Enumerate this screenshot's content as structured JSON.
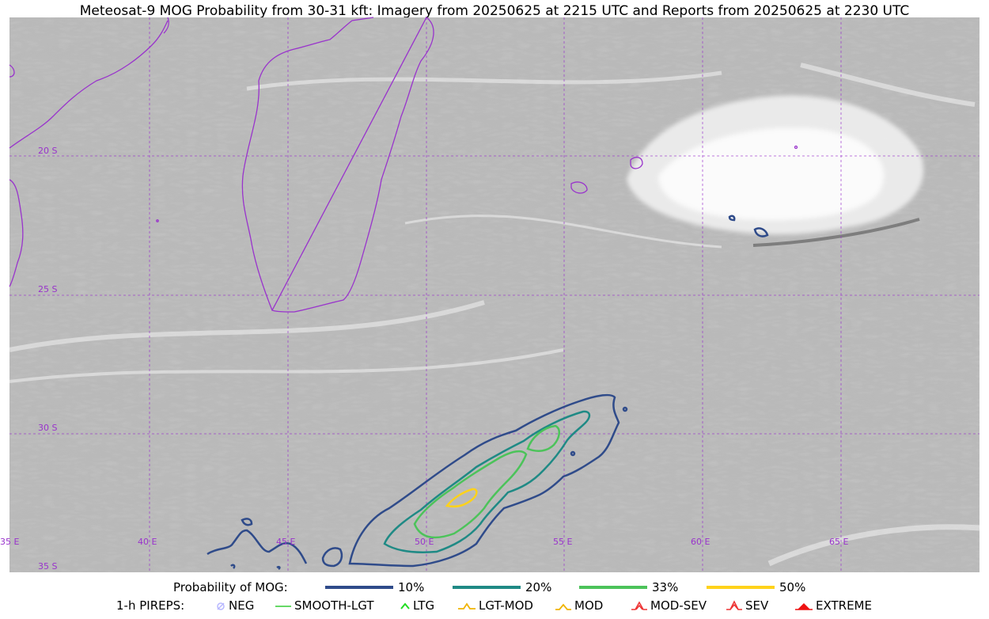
{
  "title": "Meteosat-9 MOG Probability from 30-31 kft: Imagery from 20250625 at 2215 UTC and Reports from 20250625 at 2230 UTC",
  "map": {
    "lat_labels": [
      "20 S",
      "25 S",
      "30 S",
      "35 S"
    ],
    "lon_labels": [
      "35 E",
      "40 E",
      "45 E",
      "50 E",
      "55 E",
      "60 E",
      "65 E"
    ],
    "grid_color": "#9933cc",
    "coast_color": "#9933cc",
    "contour_colors": {
      "10%": "#2f4b8a",
      "20%": "#1f8a85",
      "33%": "#4cc35a",
      "50%": "#ffd21a"
    }
  },
  "legend": {
    "probability": {
      "title": "Probability of MOG:",
      "items": [
        {
          "label": "10%",
          "color": "#2f4b8a"
        },
        {
          "label": "20%",
          "color": "#1f8a85"
        },
        {
          "label": "33%",
          "color": "#4cc35a"
        },
        {
          "label": "50%",
          "color": "#ffd21a"
        }
      ]
    },
    "pireps": {
      "title": "1-h PIREPS:",
      "items": [
        {
          "label": "NEG",
          "icon": "neg-icon",
          "color": "#b8b8ff"
        },
        {
          "label": "SMOOTH-LGT",
          "icon": "smooth-lgt-icon",
          "color": "#33cc33"
        },
        {
          "label": "LTG",
          "icon": "ltg-icon",
          "color": "#22dd22"
        },
        {
          "label": "LGT-MOD",
          "icon": "lgt-mod-icon",
          "color": "#f0b400"
        },
        {
          "label": "MOD",
          "icon": "mod-icon",
          "color": "#f0b400"
        },
        {
          "label": "MOD-SEV",
          "icon": "mod-sev-icon",
          "color": "#ee3333"
        },
        {
          "label": "SEV",
          "icon": "sev-icon",
          "color": "#ee3333"
        },
        {
          "label": "EXTREME",
          "icon": "extreme-icon",
          "color": "#ee1111"
        }
      ]
    }
  }
}
